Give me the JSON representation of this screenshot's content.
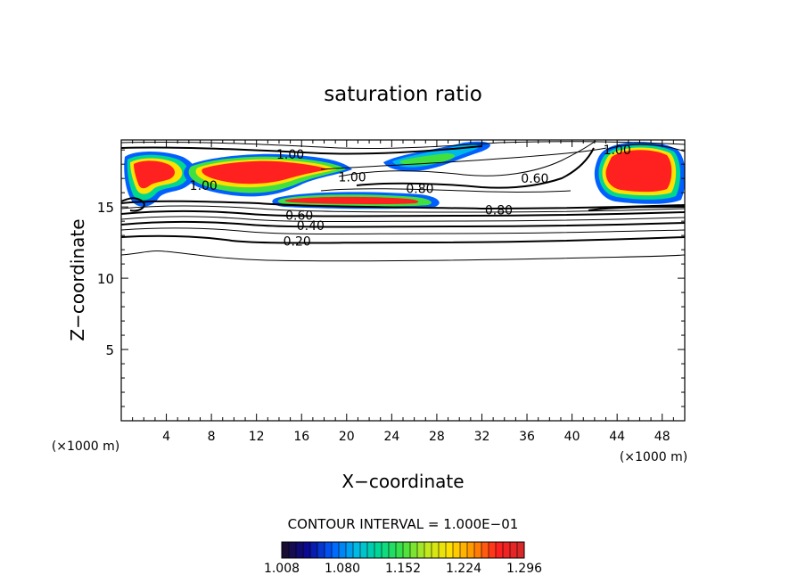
{
  "chart_data": {
    "type": "contour",
    "title": "saturation ratio",
    "xlabel": "X−coordinate",
    "ylabel": "Z−coordinate",
    "x_unit_left": "(×1000 m)",
    "x_unit_right": "(×1000 m)",
    "xlim": [
      0,
      50
    ],
    "ylim": [
      0,
      19.7
    ],
    "x_ticks": [
      4,
      8,
      12,
      16,
      20,
      24,
      28,
      32,
      36,
      40,
      44,
      48
    ],
    "y_ticks": [
      5,
      10,
      15
    ],
    "contour_interval_text": "CONTOUR INTERVAL = 1.000E−01",
    "contour_labels": [
      {
        "text": "1.00",
        "x": 15.0,
        "y": 18.7
      },
      {
        "text": "1.00",
        "x": 7.3,
        "y": 16.5
      },
      {
        "text": "1.00",
        "x": 20.5,
        "y": 17.1
      },
      {
        "text": "0.80",
        "x": 26.5,
        "y": 16.3
      },
      {
        "text": "0.80",
        "x": 33.5,
        "y": 14.8
      },
      {
        "text": "0.60",
        "x": 36.7,
        "y": 17.0
      },
      {
        "text": "1.00",
        "x": 44.0,
        "y": 19.0
      },
      {
        "text": "0.60",
        "x": 15.8,
        "y": 14.4
      },
      {
        "text": "0.40",
        "x": 16.8,
        "y": 13.7
      },
      {
        "text": "0.20",
        "x": 15.6,
        "y": 12.6
      }
    ],
    "shaded_regions": [
      {
        "region": "west upper cloud",
        "x_range": [
          0,
          5.5
        ],
        "z_range": [
          15.5,
          18.8
        ]
      },
      {
        "region": "central upper cloud",
        "x_range": [
          6,
          19.5
        ],
        "z_range": [
          16.5,
          18.8
        ]
      },
      {
        "region": "central lower band",
        "x_range": [
          13,
          28
        ],
        "z_range": [
          15.5,
          16.4
        ]
      },
      {
        "region": "upper right thin band",
        "x_range": [
          22,
          34
        ],
        "z_range": [
          18.0,
          19.6
        ]
      },
      {
        "region": "east cloud",
        "x_range": [
          41.5,
          50
        ],
        "z_range": [
          15.5,
          19.4
        ]
      }
    ],
    "colorbar": {
      "ticks": [
        "1.008",
        "1.080",
        "1.152",
        "1.224",
        "1.296"
      ],
      "colors": [
        "#1a0d33",
        "#0a0a9a",
        "#0060ff",
        "#00b8e8",
        "#00d890",
        "#40e040",
        "#c0e820",
        "#ffe000",
        "#ff9000",
        "#ff2020",
        "#d82828"
      ]
    }
  }
}
